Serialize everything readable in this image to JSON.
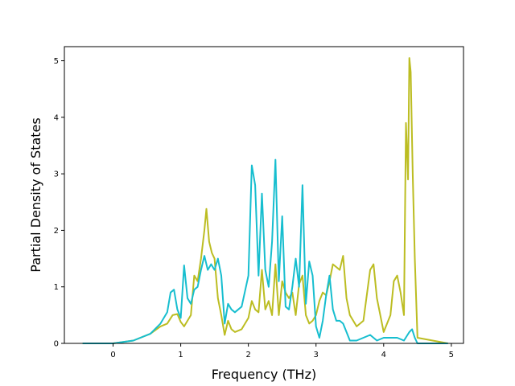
{
  "chart_data": {
    "type": "line",
    "xlabel": "Frequency (THz)",
    "ylabel": "Partial Density of States",
    "xlim": [
      -0.72,
      5.18
    ],
    "ylim": [
      0,
      5.25
    ],
    "xticks": [
      "0",
      "1",
      "2",
      "3",
      "4",
      "5"
    ],
    "yticks": [
      "0",
      "1",
      "2",
      "3",
      "4",
      "5"
    ],
    "grid": false,
    "series": [
      {
        "color": "#bcbd22",
        "x": [
          -0.45,
          0.0,
          0.3,
          0.55,
          0.7,
          0.8,
          0.88,
          0.95,
          1.0,
          1.05,
          1.1,
          1.15,
          1.2,
          1.25,
          1.3,
          1.35,
          1.38,
          1.42,
          1.46,
          1.5,
          1.55,
          1.6,
          1.65,
          1.7,
          1.75,
          1.8,
          1.9,
          2.0,
          2.05,
          2.1,
          2.15,
          2.2,
          2.25,
          2.3,
          2.35,
          2.4,
          2.45,
          2.5,
          2.55,
          2.6,
          2.65,
          2.7,
          2.75,
          2.8,
          2.85,
          2.9,
          2.95,
          3.0,
          3.05,
          3.1,
          3.15,
          3.2,
          3.25,
          3.3,
          3.35,
          3.4,
          3.45,
          3.5,
          3.6,
          3.7,
          3.8,
          3.85,
          3.9,
          4.0,
          4.1,
          4.15,
          4.2,
          4.25,
          4.3,
          4.33,
          4.36,
          4.38,
          4.4,
          4.43,
          4.46,
          4.5,
          4.95
        ],
        "y": [
          0.0,
          0.0,
          0.05,
          0.17,
          0.3,
          0.35,
          0.5,
          0.52,
          0.38,
          0.3,
          0.4,
          0.5,
          1.2,
          1.1,
          1.5,
          2.0,
          2.38,
          1.8,
          1.6,
          1.5,
          0.8,
          0.5,
          0.15,
          0.4,
          0.25,
          0.2,
          0.25,
          0.45,
          0.75,
          0.6,
          0.55,
          1.3,
          0.6,
          0.75,
          0.5,
          1.4,
          0.5,
          1.1,
          0.9,
          0.8,
          0.9,
          0.5,
          1.05,
          1.2,
          0.5,
          0.35,
          0.4,
          0.5,
          0.75,
          0.9,
          0.85,
          1.1,
          1.4,
          1.35,
          1.3,
          1.55,
          0.8,
          0.5,
          0.3,
          0.4,
          1.3,
          1.4,
          0.8,
          0.2,
          0.5,
          1.1,
          1.2,
          0.9,
          0.5,
          3.9,
          2.9,
          5.05,
          4.8,
          3.0,
          1.5,
          0.1,
          0.0
        ]
      },
      {
        "color": "#17becf",
        "x": [
          -0.45,
          0.0,
          0.3,
          0.55,
          0.7,
          0.8,
          0.85,
          0.9,
          0.95,
          1.0,
          1.05,
          1.1,
          1.15,
          1.2,
          1.25,
          1.3,
          1.35,
          1.4,
          1.45,
          1.5,
          1.55,
          1.6,
          1.65,
          1.7,
          1.75,
          1.8,
          1.9,
          2.0,
          2.05,
          2.1,
          2.15,
          2.2,
          2.25,
          2.3,
          2.35,
          2.4,
          2.45,
          2.5,
          2.55,
          2.6,
          2.65,
          2.7,
          2.75,
          2.8,
          2.85,
          2.9,
          2.95,
          3.0,
          3.05,
          3.1,
          3.15,
          3.2,
          3.25,
          3.3,
          3.35,
          3.4,
          3.45,
          3.5,
          3.6,
          3.7,
          3.8,
          3.85,
          3.9,
          4.0,
          4.2,
          4.3,
          4.38,
          4.42,
          4.46,
          4.5,
          4.95
        ],
        "y": [
          0.0,
          0.0,
          0.05,
          0.17,
          0.35,
          0.55,
          0.9,
          0.95,
          0.6,
          0.45,
          1.38,
          0.8,
          0.7,
          0.95,
          1.0,
          1.3,
          1.55,
          1.3,
          1.4,
          1.3,
          1.5,
          1.2,
          0.35,
          0.7,
          0.6,
          0.55,
          0.65,
          1.2,
          3.15,
          2.8,
          1.2,
          2.65,
          1.3,
          1.0,
          1.8,
          3.25,
          1.1,
          2.25,
          0.65,
          0.6,
          1.0,
          1.5,
          1.0,
          2.8,
          0.7,
          1.45,
          1.2,
          0.3,
          0.1,
          0.4,
          0.85,
          1.2,
          0.6,
          0.4,
          0.4,
          0.35,
          0.2,
          0.05,
          0.05,
          0.1,
          0.15,
          0.1,
          0.05,
          0.1,
          0.1,
          0.05,
          0.2,
          0.25,
          0.1,
          0.0,
          0.0
        ]
      }
    ]
  }
}
